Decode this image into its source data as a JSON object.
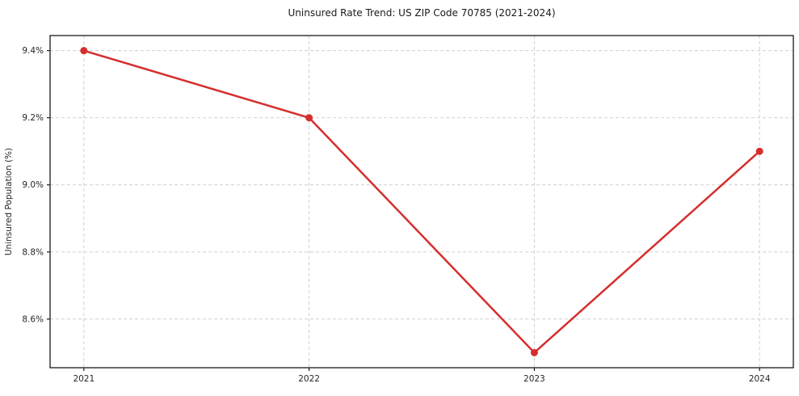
{
  "chart_data": {
    "type": "line",
    "title": "Uninsured Rate Trend: US ZIP Code 70785 (2021-2024)",
    "xlabel": "",
    "ylabel": "Uninsured Population (%)",
    "x": [
      2021,
      2022,
      2023,
      2024
    ],
    "x_tick_labels": [
      "2021",
      "2022",
      "2023",
      "2024"
    ],
    "y_ticks": [
      8.6,
      8.8,
      9.0,
      9.2,
      9.4
    ],
    "y_tick_labels": [
      "8.6%",
      "8.8%",
      "9.0%",
      "9.2%",
      "9.4%"
    ],
    "series": [
      {
        "name": "uninsured-rate",
        "values": [
          9.4,
          9.2,
          8.5,
          9.1
        ]
      }
    ],
    "xlim": [
      2020.85,
      2024.15
    ],
    "ylim": [
      8.455,
      9.445
    ],
    "grid": true,
    "legend": "none",
    "colors": {
      "line": "#d62e2e",
      "marker": "#d62e2e",
      "grid": "#cfcfcf",
      "spine": "#1a1a1a",
      "tick": "#1a1a1a"
    },
    "style": {
      "line_width": 2.5,
      "marker_radius": 4.5,
      "grid_dash": "4,3"
    }
  }
}
